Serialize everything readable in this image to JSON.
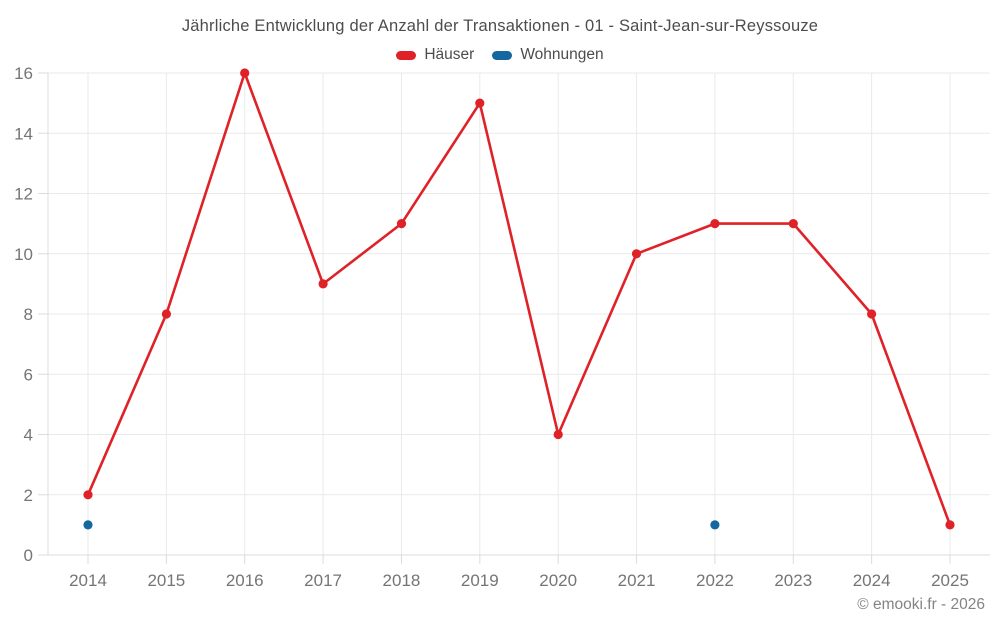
{
  "title": "Jährliche Entwicklung der Anzahl der Transaktionen - 01 - Saint-Jean-sur-Reyssouze",
  "footer": "© emooki.fr - 2026",
  "colors": {
    "haeuser_red": "#df2228",
    "wohnungen_blue": "#15689f",
    "gridline": "#e9e9e9",
    "axis_line": "#dcdcdc",
    "tick_label": "#757575",
    "title_text": "#4d4d4d",
    "footer_text": "#848484"
  },
  "chart_data": {
    "type": "line",
    "title": "Jährliche Entwicklung der Anzahl der Transaktionen - 01 - Saint-Jean-sur-Reyssouze",
    "categories": [
      "2014",
      "2015",
      "2016",
      "2017",
      "2018",
      "2019",
      "2020",
      "2021",
      "2022",
      "2023",
      "2024",
      "2025"
    ],
    "series": [
      {
        "name": "Häuser",
        "color": "#df2228",
        "values": [
          2,
          8,
          16,
          9,
          11,
          15,
          4,
          10,
          11,
          11,
          8,
          1
        ]
      },
      {
        "name": "Wohnungen",
        "color": "#15689f",
        "values": [
          1,
          null,
          null,
          null,
          null,
          null,
          null,
          null,
          1,
          null,
          null,
          null
        ]
      }
    ],
    "xlabel": "",
    "ylabel": "",
    "ylim": [
      0,
      16
    ],
    "ytick_step": 2,
    "grid": true,
    "legend_position": "top"
  }
}
